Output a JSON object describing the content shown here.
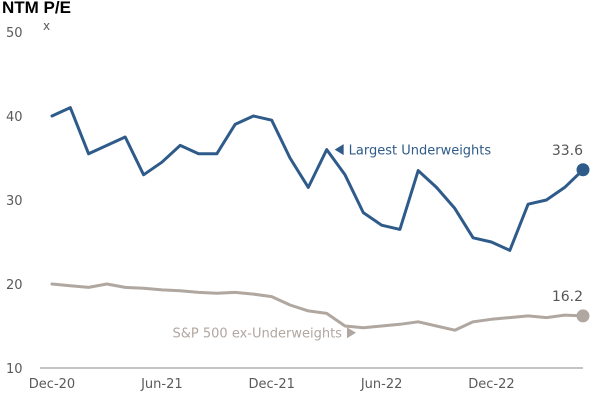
{
  "chart_data": {
    "type": "line",
    "title": "NTM P/E",
    "y_unit": "x",
    "ylim": [
      10,
      50
    ],
    "y_ticks": [
      "50",
      "40",
      "30",
      "20",
      "10"
    ],
    "x_ticks": [
      "Dec-20",
      "Jun-21",
      "Dec-21",
      "Jun-22",
      "Dec-22"
    ],
    "xlim": [
      "2020-12",
      "2023-05"
    ],
    "grid": false,
    "x": [
      "2020-12",
      "2021-01",
      "2021-02",
      "2021-03",
      "2021-04",
      "2021-05",
      "2021-06",
      "2021-07",
      "2021-08",
      "2021-09",
      "2021-10",
      "2021-11",
      "2021-12",
      "2022-01",
      "2022-02",
      "2022-03",
      "2022-04",
      "2022-05",
      "2022-06",
      "2022-07",
      "2022-08",
      "2022-09",
      "2022-10",
      "2022-11",
      "2022-12",
      "2023-01",
      "2023-02",
      "2023-03",
      "2023-04",
      "2023-05"
    ],
    "series": [
      {
        "name": "Largest Underweights",
        "color": "#2f5b8a",
        "values": [
          40.0,
          41.0,
          35.5,
          36.5,
          37.5,
          33.0,
          34.5,
          36.5,
          35.5,
          35.5,
          39.0,
          40.0,
          39.5,
          35.0,
          31.5,
          36.0,
          33.0,
          28.5,
          27.0,
          26.5,
          33.5,
          31.5,
          29.0,
          25.5,
          25.0,
          24.0,
          29.5,
          30.0,
          31.5,
          33.6
        ],
        "end_label": "33.6",
        "annotation": "Largest Underweights",
        "annotation_marker": "left-triangle"
      },
      {
        "name": "S&P 500 ex-Underweights",
        "color": "#b0a7a0",
        "values": [
          20.0,
          19.8,
          19.6,
          20.0,
          19.6,
          19.5,
          19.3,
          19.2,
          19.0,
          18.9,
          19.0,
          18.8,
          18.5,
          17.5,
          16.8,
          16.5,
          15.0,
          14.8,
          15.0,
          15.2,
          15.5,
          15.0,
          14.5,
          15.5,
          15.8,
          16.0,
          16.2,
          16.0,
          16.3,
          16.2
        ],
        "end_label": "16.2",
        "annotation": "S&P 500 ex-Underweights",
        "annotation_marker": "right-triangle"
      }
    ]
  }
}
